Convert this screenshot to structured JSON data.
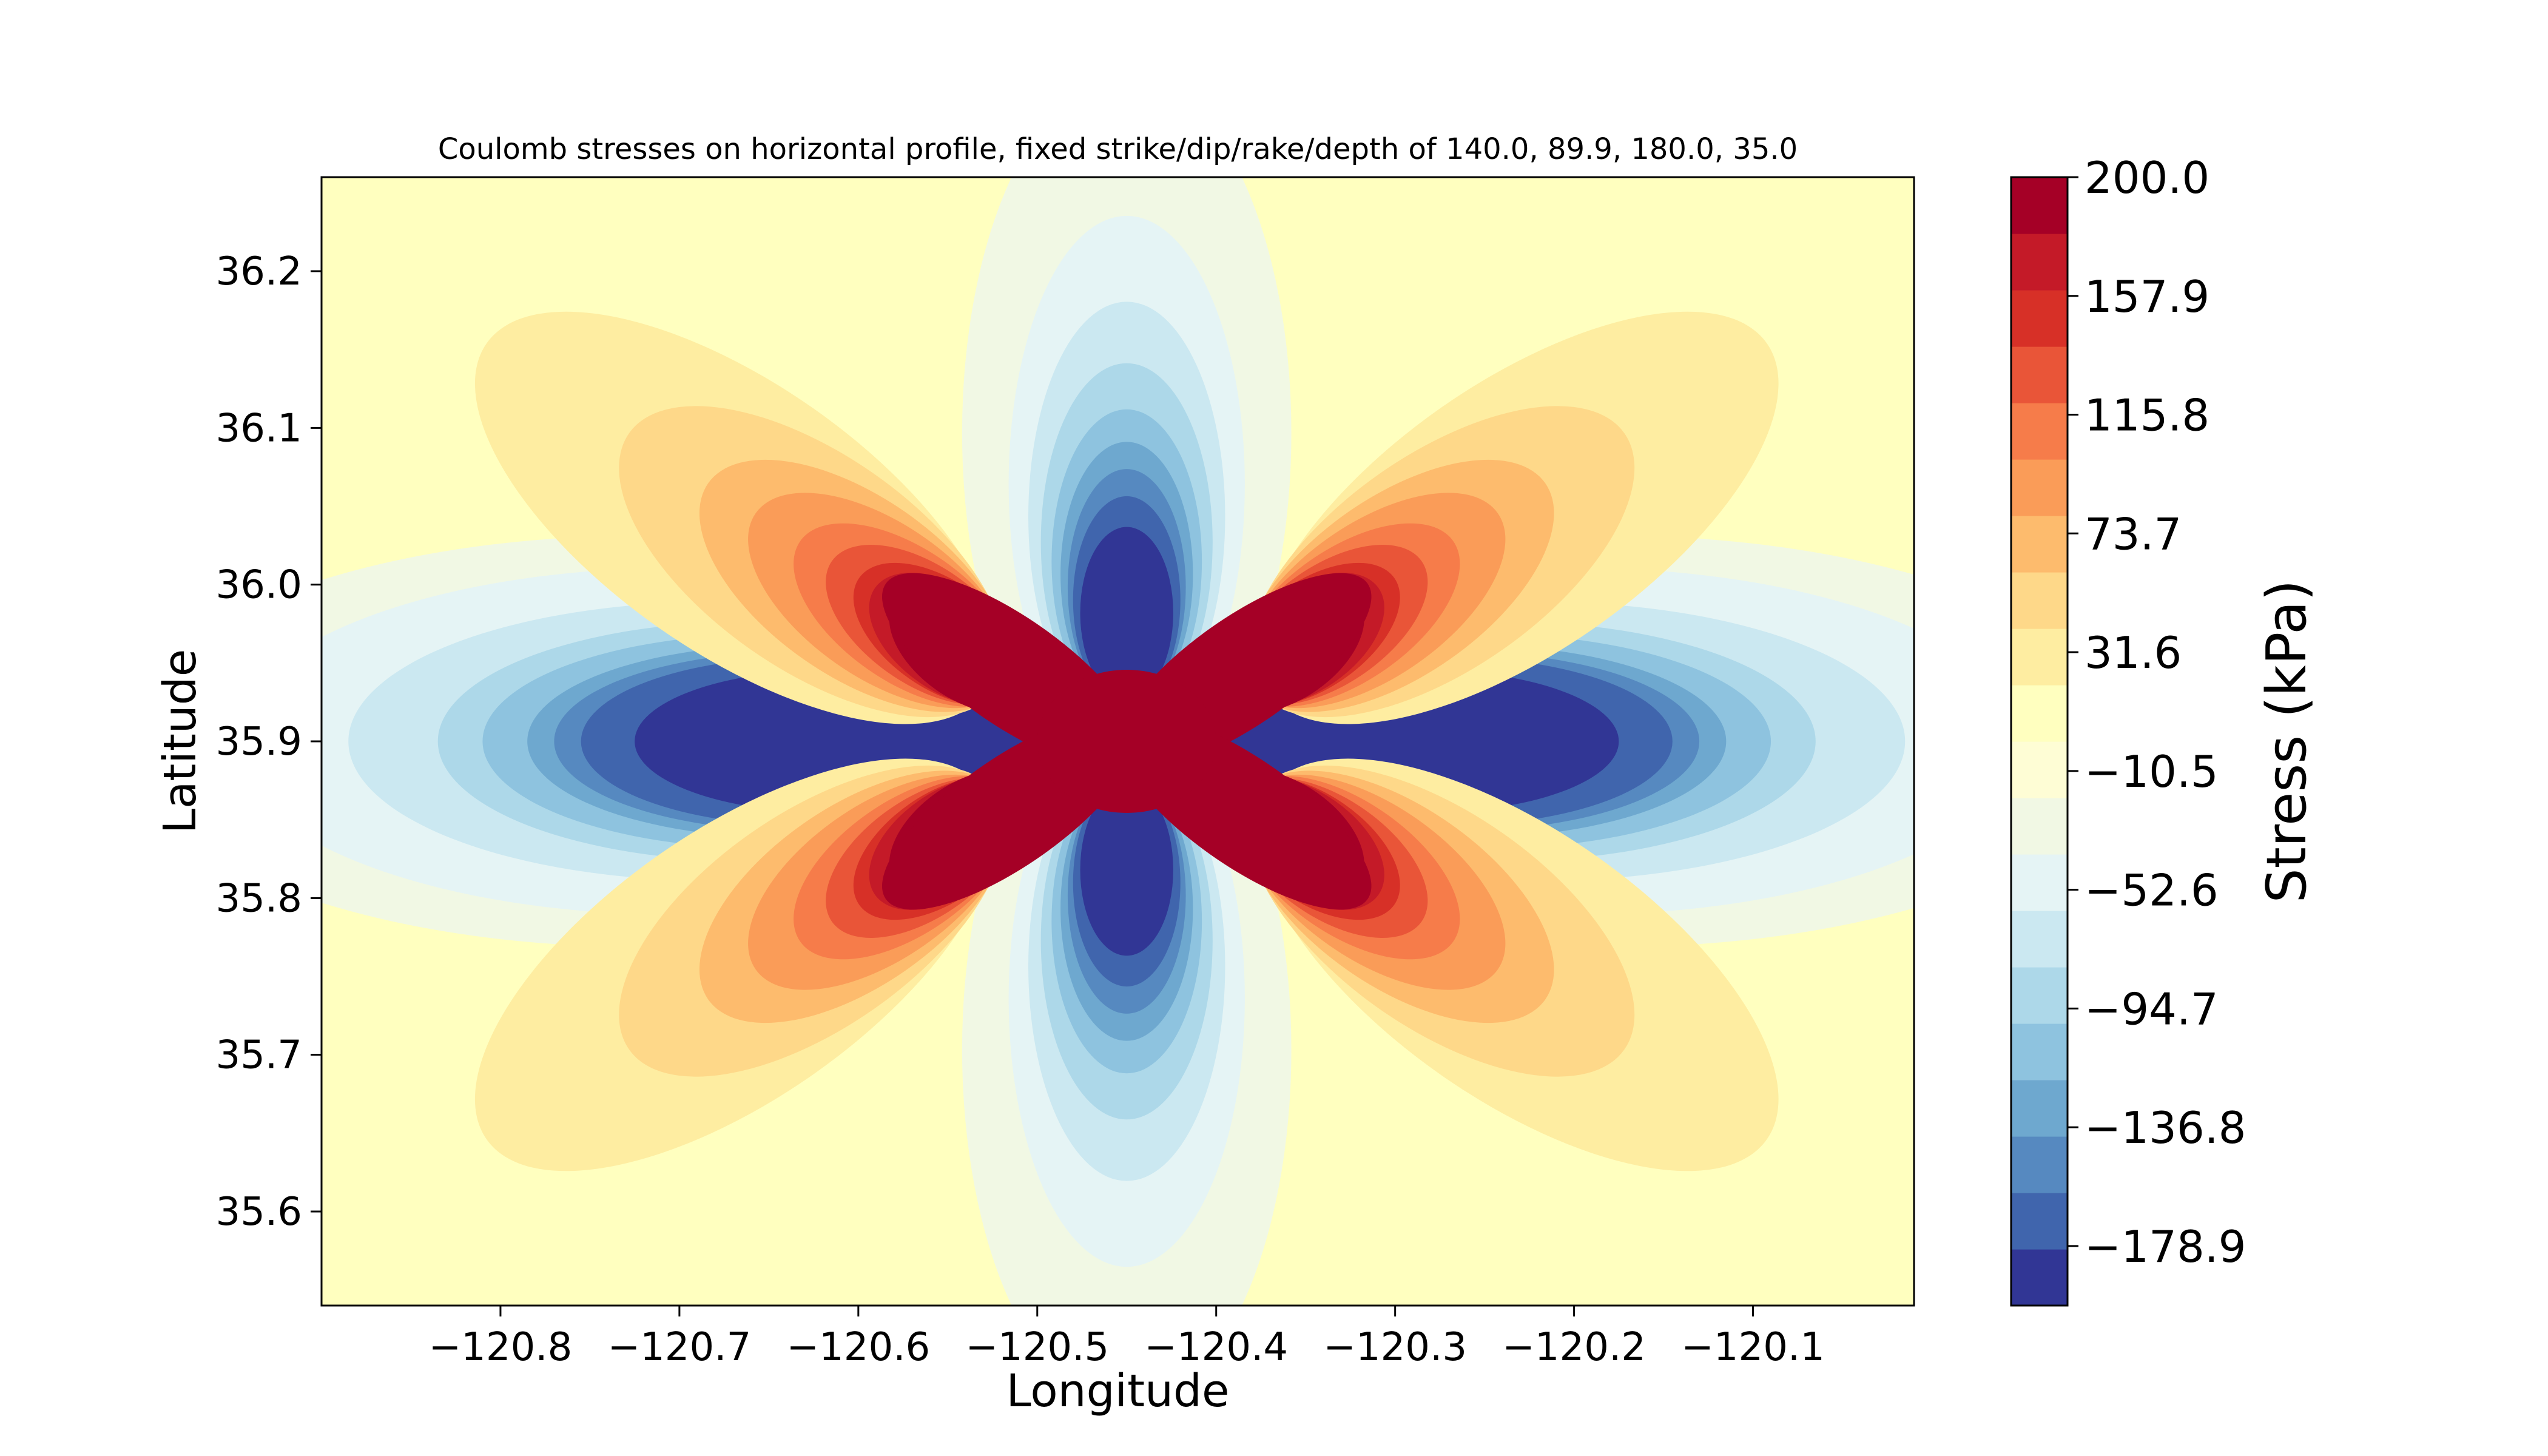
{
  "chart_data": {
    "type": "heatmap",
    "title": "Coulomb stresses on horizontal profile, fixed strike/dip/rake/depth of 140.0, 89.9, 180.0, 35.0",
    "xlabel": "Longitude",
    "ylabel": "Latitude",
    "xlim": [
      -120.9,
      -120.01
    ],
    "ylim": [
      35.54,
      36.26
    ],
    "x_ticks": [
      -120.8,
      -120.7,
      -120.6,
      -120.5,
      -120.4,
      -120.3,
      -120.2,
      -120.1
    ],
    "x_tick_labels": [
      "−120.8",
      "−120.7",
      "−120.6",
      "−120.5",
      "−120.4",
      "−120.3",
      "−120.2",
      "−120.1"
    ],
    "y_ticks": [
      35.6,
      35.7,
      35.8,
      35.9,
      36.0,
      36.1,
      36.2
    ],
    "y_tick_labels": [
      "35.6",
      "35.7",
      "35.8",
      "35.9",
      "36.0",
      "36.1",
      "36.2"
    ],
    "source_center": [
      -120.45,
      35.9
    ],
    "colorbar": {
      "label": "Stress (kPa)",
      "range": [
        -200.0,
        200.0
      ],
      "ticks": [
        200.0,
        157.9,
        115.8,
        73.7,
        31.6,
        -10.5,
        -52.6,
        -94.7,
        -136.8,
        -178.9
      ],
      "tick_labels": [
        "200.0",
        "157.9",
        "115.8",
        "73.7",
        "31.6",
        "−10.5",
        "−52.6",
        "−94.7",
        "−136.8",
        "−178.9"
      ],
      "colors": [
        "#313695",
        "#4065ad",
        "#5689c0",
        "#6ea8cf",
        "#8ec3df",
        "#add8e9",
        "#cbe8f1",
        "#e5f4f5",
        "#f1f8e4",
        "#fefdd5",
        "#ffffbf",
        "#feeda1",
        "#fed889",
        "#fdbb6d",
        "#fa9c58",
        "#f67c4a",
        "#e95538",
        "#d73027",
        "#c41a28",
        "#a50026"
      ]
    }
  }
}
